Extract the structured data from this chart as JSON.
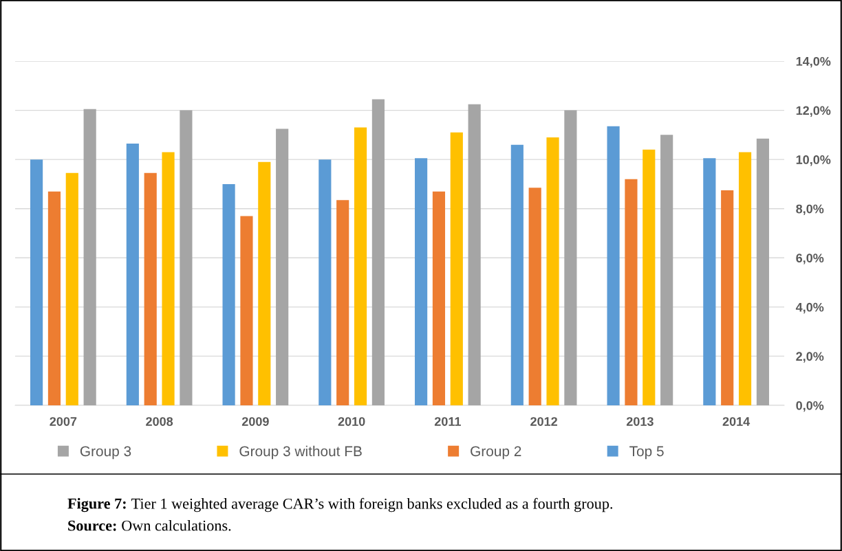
{
  "chart_data": {
    "type": "bar",
    "categories": [
      "2007",
      "2008",
      "2009",
      "2010",
      "2011",
      "2012",
      "2013",
      "2014"
    ],
    "series": [
      {
        "name": "Top 5",
        "color": "#5b9bd5",
        "values": [
          10.0,
          10.65,
          9.0,
          10.0,
          10.05,
          10.6,
          11.35,
          10.05
        ]
      },
      {
        "name": "Group 2",
        "color": "#ed7d31",
        "values": [
          8.7,
          9.45,
          7.7,
          8.35,
          8.7,
          8.85,
          9.2,
          8.75
        ]
      },
      {
        "name": "Group 3 without FB",
        "color": "#ffc000",
        "values": [
          9.45,
          10.3,
          9.9,
          11.3,
          11.1,
          10.9,
          10.4,
          10.3
        ]
      },
      {
        "name": "Group 3",
        "color": "#a5a5a5",
        "values": [
          12.05,
          12.0,
          11.25,
          12.45,
          12.25,
          12.0,
          11.0,
          10.85
        ]
      }
    ],
    "ylim": [
      0,
      14
    ],
    "yticks": [
      {
        "value": 0,
        "label": "0,0%"
      },
      {
        "value": 2,
        "label": "2,0%"
      },
      {
        "value": 4,
        "label": "4,0%"
      },
      {
        "value": 6,
        "label": "6,0%"
      },
      {
        "value": 8,
        "label": "8,0%"
      },
      {
        "value": 10,
        "label": "10,0%"
      },
      {
        "value": 12,
        "label": "12,0%"
      },
      {
        "value": 14,
        "label": "14,0%"
      }
    ],
    "grid": "y",
    "legend": "bottom",
    "annotations": [
      "Figure 7: Tier 1 weighted average CAR’s with foreign banks excluded as a fourth group.",
      "Source: Own calculations."
    ]
  }
}
